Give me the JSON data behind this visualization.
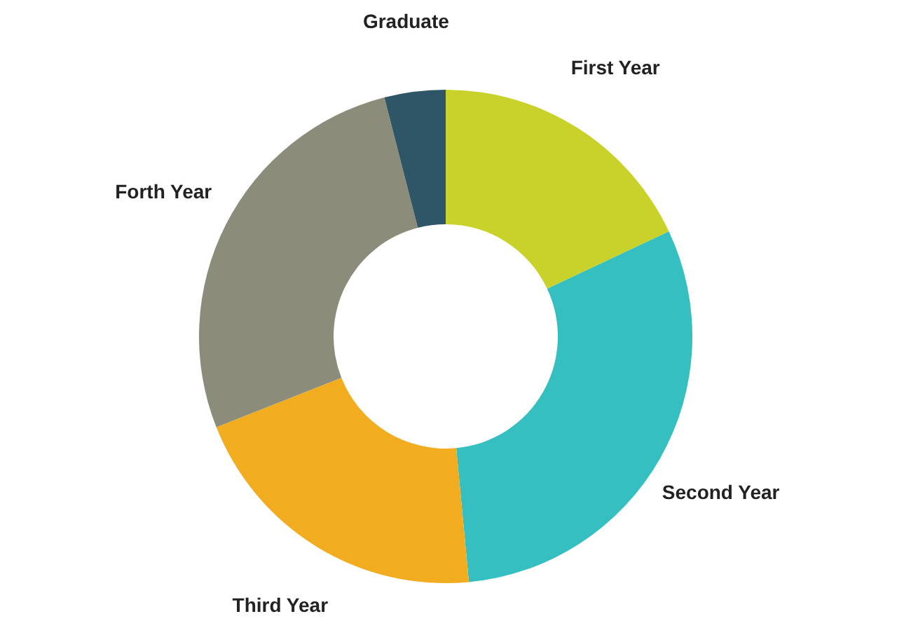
{
  "chart_data": {
    "type": "donut",
    "categories": [
      "First Year",
      "Second Year",
      "Third Year",
      "Forth Year",
      "Graduate"
    ],
    "values": [
      18,
      30.5,
      20.5,
      27,
      4
    ],
    "colors": [
      "#c9d22a",
      "#35bfc0",
      "#f2ac1f",
      "#8c8c7a",
      "#2f5667"
    ]
  }
}
